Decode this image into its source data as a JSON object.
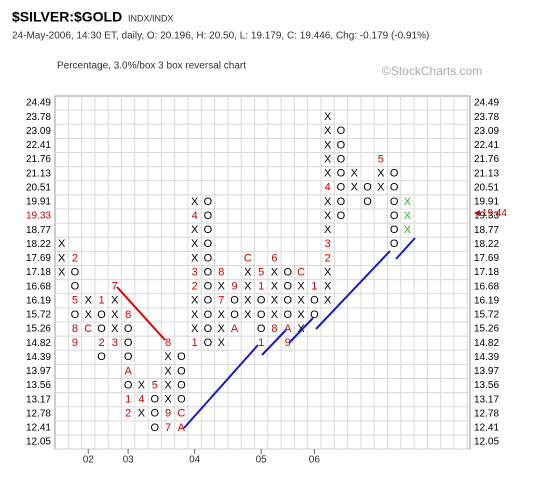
{
  "chart_data": {
    "type": "point-and-figure",
    "title": "$SILVER:$GOLD",
    "subtitle_tag": "INDX/INDX",
    "info": "24-May-2006, 14:30 ET, daily, O: 20.196, H: 20.50, L: 19.179, C: 19.446, Chg: -0.179 (-0.91%)",
    "method": "Percentage, 3.0%/box 3 box reversal chart",
    "watermark": "©StockCharts.com",
    "yticks": [
      24.49,
      23.78,
      23.09,
      22.41,
      21.76,
      21.13,
      20.51,
      19.91,
      19.33,
      18.77,
      18.22,
      17.69,
      17.18,
      16.68,
      16.19,
      15.72,
      15.26,
      14.82,
      14.39,
      13.97,
      13.56,
      13.17,
      12.78,
      12.41,
      12.05
    ],
    "current_box": 19.33,
    "last_price": {
      "value": 19.44,
      "label": "◄19.44"
    },
    "mark_color": "#000000",
    "month_color": "#cc0000",
    "columns": [
      {
        "type": "X",
        "top": 18.22,
        "boxes": [
          "X",
          "X",
          "X"
        ]
      },
      {
        "type": "O",
        "top": 17.69,
        "boxes": [
          "2",
          "O",
          "O",
          "5",
          "O",
          "8",
          "9"
        ]
      },
      {
        "type": "X",
        "top": 16.19,
        "boxes": [
          "X",
          "X",
          "C"
        ]
      },
      {
        "type": "O",
        "top": 16.19,
        "boxes": [
          "1",
          "O",
          "O",
          "2",
          "O"
        ]
      },
      {
        "type": "X",
        "top": 16.68,
        "boxes": [
          "7",
          "X",
          "X",
          "X",
          "3"
        ]
      },
      {
        "type": "O",
        "top": 15.72,
        "boxes": [
          "8",
          "O",
          "O",
          "O",
          "A",
          "O",
          "1",
          "2"
        ],
        "year": "03"
      },
      {
        "type": "X",
        "top": 13.56,
        "boxes": [
          "X",
          "4",
          "X"
        ]
      },
      {
        "type": "O",
        "top": 13.56,
        "boxes": [
          "5",
          "O",
          "O",
          "O"
        ]
      },
      {
        "type": "X",
        "top": 14.82,
        "boxes": [
          "8",
          "X",
          "X",
          "X",
          "X",
          "9",
          "7"
        ]
      },
      {
        "type": "O",
        "top": 14.39,
        "boxes": [
          "O",
          "O",
          "O",
          "O",
          "C",
          "A"
        ]
      },
      {
        "type": "X",
        "top": 19.91,
        "boxes": [
          "X",
          "4",
          "X",
          "X",
          "X",
          "3",
          "2",
          "X",
          "X",
          "X",
          "1"
        ],
        "year": "04"
      },
      {
        "type": "O",
        "top": 19.91,
        "boxes": [
          "O",
          "O",
          "O",
          "O",
          "O",
          "O",
          "O",
          "O",
          "O",
          "O",
          "O"
        ]
      },
      {
        "type": "X",
        "top": 17.18,
        "boxes": [
          "8",
          "X",
          "7",
          "X",
          "X",
          "X"
        ]
      },
      {
        "type": "O",
        "top": 16.68,
        "boxes": [
          "9",
          "O",
          "O",
          "A"
        ]
      },
      {
        "type": "X",
        "top": 17.69,
        "boxes": [
          "C",
          "X",
          "X",
          "X",
          "X"
        ]
      },
      {
        "type": "O",
        "top": 17.18,
        "boxes": [
          "5",
          "1",
          "O",
          "O",
          "O",
          "1"
        ],
        "year": "05"
      },
      {
        "type": "X",
        "top": 17.69,
        "boxes": [
          "6",
          "X",
          "X",
          "X",
          "X",
          "8"
        ]
      },
      {
        "type": "O",
        "top": 17.18,
        "boxes": [
          "O",
          "O",
          "O",
          "O",
          "A",
          "9"
        ]
      },
      {
        "type": "X",
        "top": 17.18,
        "boxes": [
          "C",
          "X",
          "X",
          "X",
          "X"
        ]
      },
      {
        "type": "O",
        "top": 16.68,
        "boxes": [
          "1",
          "O",
          "O"
        ],
        "year": "06"
      },
      {
        "type": "X",
        "top": 23.78,
        "boxes": [
          "X",
          "X",
          "X",
          "X",
          "X",
          "4",
          "X",
          "X",
          "X",
          "3",
          "2",
          "X",
          "X",
          "X"
        ]
      },
      {
        "type": "O",
        "top": 23.09,
        "boxes": [
          "O",
          "O",
          "O",
          "O",
          "O",
          "O",
          "O"
        ]
      },
      {
        "type": "X",
        "top": 21.13,
        "boxes": [
          "X",
          "X"
        ]
      },
      {
        "type": "O",
        "top": 20.51,
        "boxes": [
          "O",
          "O"
        ]
      },
      {
        "type": "X",
        "top": 21.76,
        "boxes": [
          "5",
          "X",
          "X"
        ]
      },
      {
        "type": "O",
        "top": 21.13,
        "boxes": [
          "O",
          "O",
          "O",
          "O",
          "O",
          "O"
        ]
      },
      {
        "type": "X",
        "top": 19.91,
        "boxes": [
          "X",
          "X",
          "X"
        ],
        "color": "#33aa33"
      }
    ],
    "year_column_2": "02"
  }
}
